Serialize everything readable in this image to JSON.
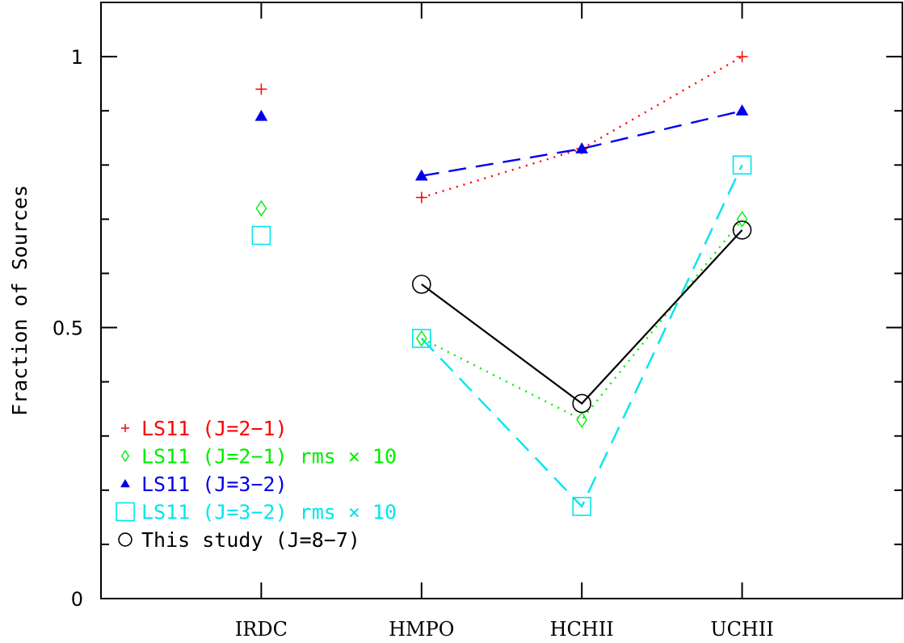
{
  "chart_data": {
    "type": "scatter",
    "ylabel": "Fraction of Sources",
    "xlabel": "",
    "categories": [
      "IRDC",
      "HMPO",
      "HCHII",
      "UCHII"
    ],
    "ylim": [
      0,
      1.1
    ],
    "y_ticks": [
      0,
      0.5,
      1
    ],
    "y_tick_labels": [
      "0",
      "0.5",
      "1"
    ],
    "grid": false,
    "legend_position": "bottom-left",
    "series": [
      {
        "name": "LS11 (J=2−1)",
        "color": "#ff0000",
        "marker": "plus",
        "line": "dotted",
        "values": [
          0.94,
          0.74,
          0.83,
          1.0
        ],
        "connect_from": 1
      },
      {
        "name": "LS11 (J=2−1) rms × 10",
        "color": "#00ee00",
        "marker": "diamond",
        "line": "dotted",
        "values": [
          0.72,
          0.48,
          0.33,
          0.7
        ],
        "connect_from": 1
      },
      {
        "name": "LS11 (J=3−2)",
        "color": "#0000ee",
        "marker": "triangle",
        "line": "dashed",
        "values": [
          0.89,
          0.78,
          0.83,
          0.9
        ],
        "connect_from": 1
      },
      {
        "name": "LS11 (J=3−2) rms × 10",
        "color": "#00e5ee",
        "marker": "square",
        "line": "dashed",
        "values": [
          0.67,
          0.48,
          0.17,
          0.8
        ],
        "connect_from": 1
      },
      {
        "name": "This study (J=8−7)",
        "color": "#000000",
        "marker": "circle",
        "line": "solid",
        "values": [
          null,
          0.58,
          0.36,
          0.68
        ],
        "connect_from": 1
      }
    ]
  }
}
